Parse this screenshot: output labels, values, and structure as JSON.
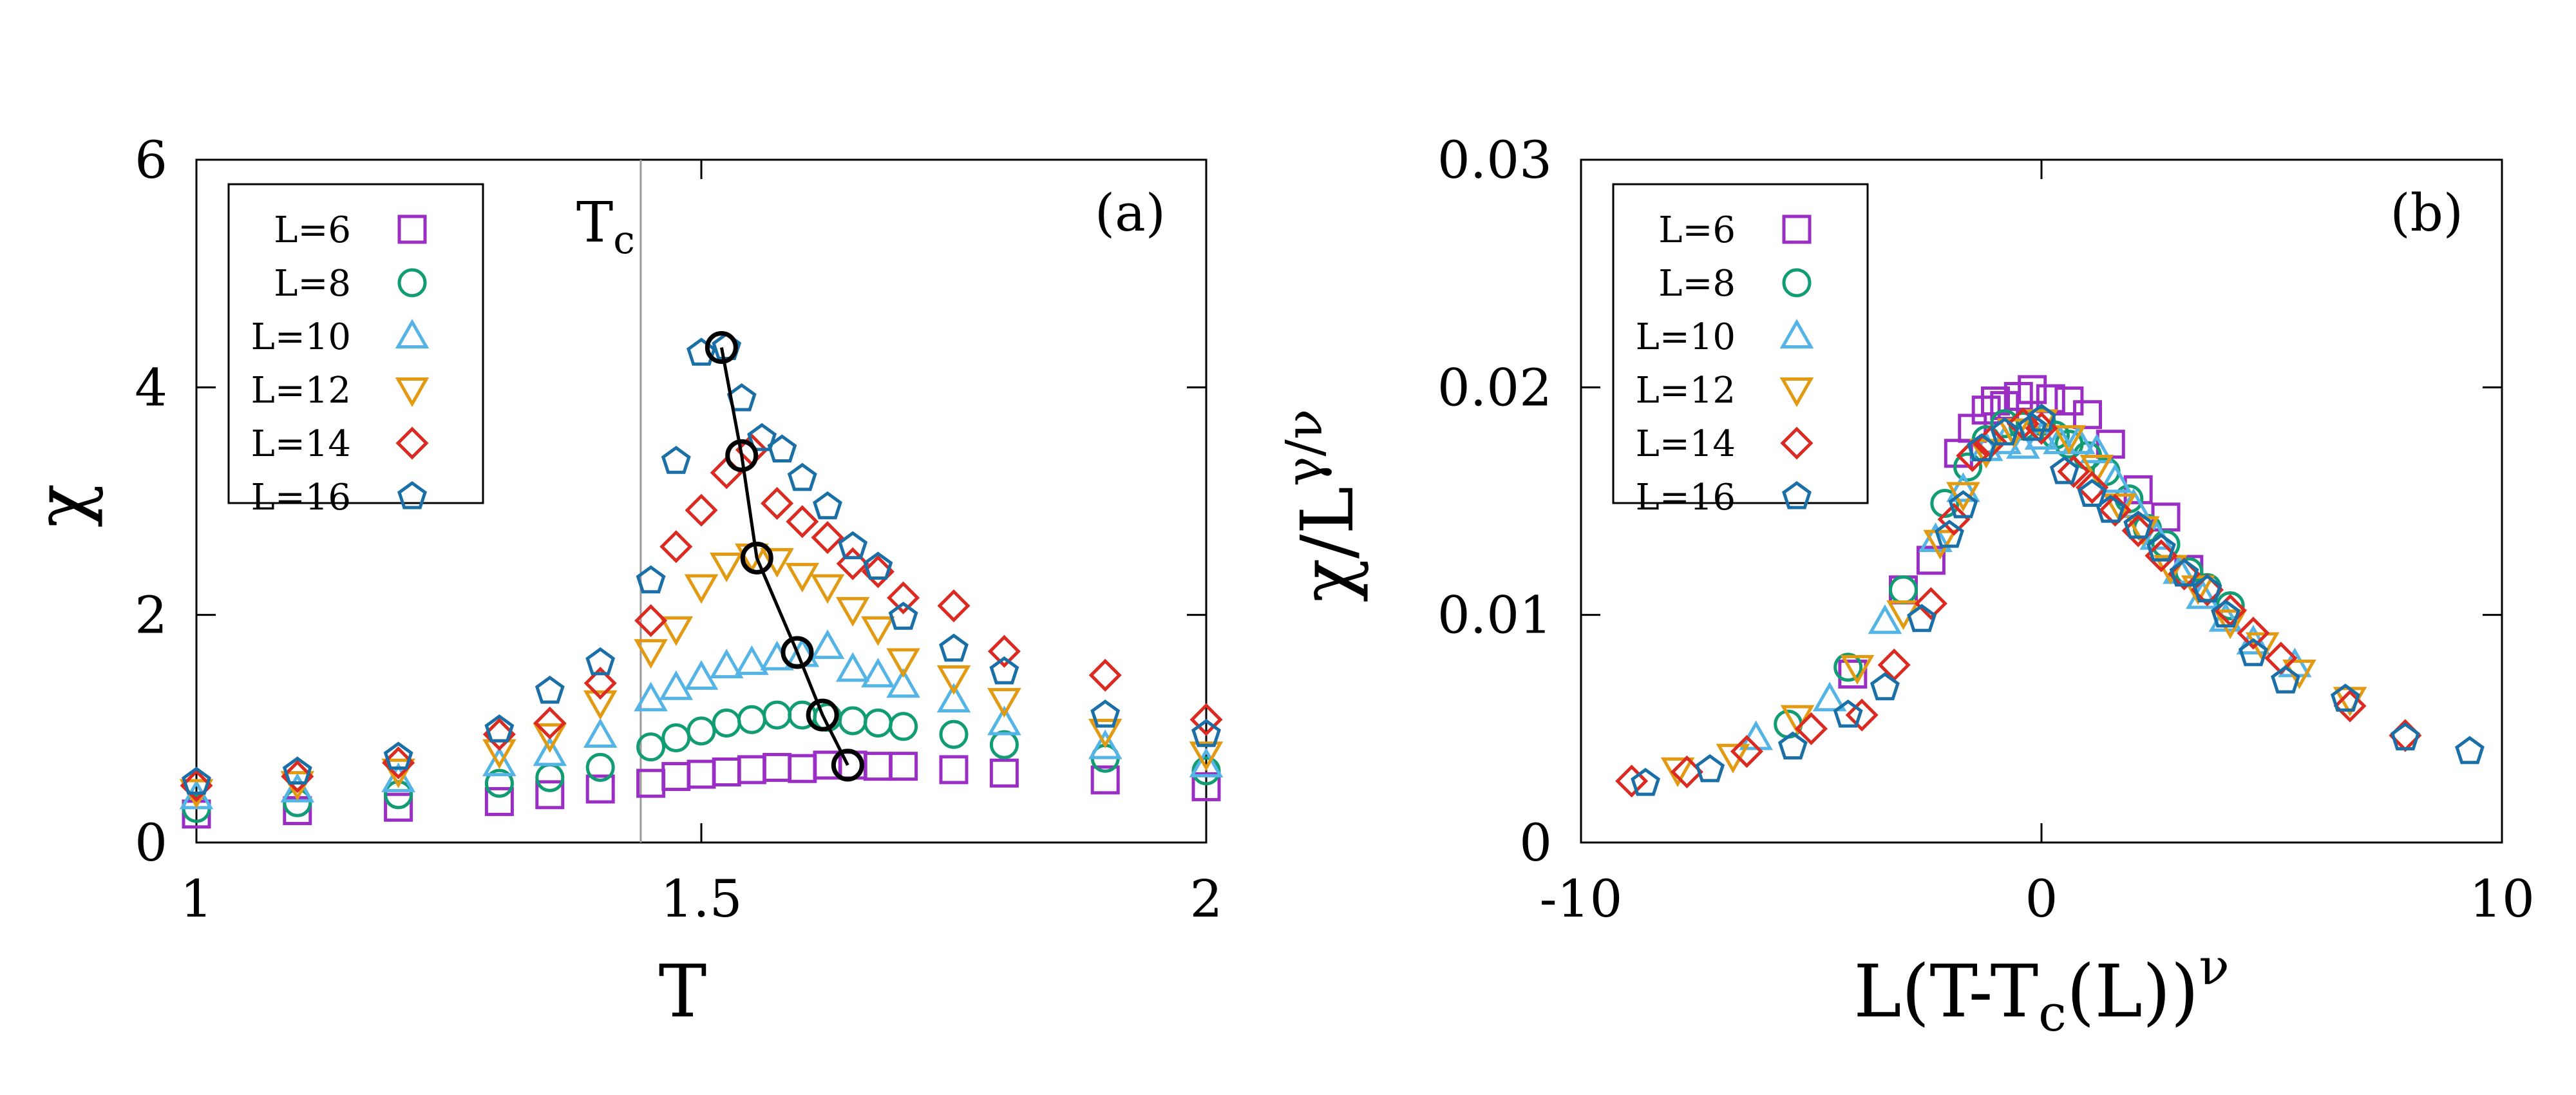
{
  "figure": {
    "description_panels": [
      "(a)",
      "(b)"
    ]
  },
  "colors": {
    "L6": "#9a2ec4",
    "L8": "#119c74",
    "L10": "#55b4e6",
    "L12": "#e39a13",
    "L14": "#da2a21",
    "L16": "#1a6fa6",
    "line": "#000000",
    "tc_line": "#9a9a9a"
  },
  "chart_data": [
    {
      "type": "scatter",
      "panel_label": "(a)",
      "xlabel": "T",
      "ylabel": "χ",
      "xlim": [
        1,
        2
      ],
      "ylim": [
        0,
        6
      ],
      "xticks": [
        1,
        1.5,
        2
      ],
      "xtick_labels": [
        "1",
        "1.5",
        "2"
      ],
      "yticks": [
        0,
        2,
        4,
        6
      ],
      "ytick_labels": [
        "0",
        "2",
        "4",
        "6"
      ],
      "legend_position": "top-left",
      "annotation": {
        "text": "T",
        "subscript": "c",
        "x": 1.44
      },
      "series": [
        {
          "name": "L=6",
          "marker": "square",
          "color_key": "L6",
          "x": [
            1.0,
            1.1,
            1.2,
            1.3,
            1.35,
            1.4,
            1.45,
            1.475,
            1.5,
            1.525,
            1.55,
            1.575,
            1.6,
            1.625,
            1.65,
            1.675,
            1.7,
            1.75,
            1.8,
            1.9,
            2.0
          ],
          "y": [
            0.25,
            0.28,
            0.31,
            0.36,
            0.42,
            0.47,
            0.52,
            0.58,
            0.6,
            0.62,
            0.64,
            0.66,
            0.65,
            0.68,
            0.68,
            0.67,
            0.67,
            0.64,
            0.61,
            0.55,
            0.49
          ]
        },
        {
          "name": "L=8",
          "marker": "circle",
          "color_key": "L8",
          "x": [
            1.0,
            1.1,
            1.2,
            1.3,
            1.35,
            1.4,
            1.45,
            1.475,
            1.5,
            1.525,
            1.55,
            1.575,
            1.6,
            1.625,
            1.65,
            1.675,
            1.7,
            1.75,
            1.8,
            1.9,
            2.0
          ],
          "y": [
            0.3,
            0.35,
            0.42,
            0.52,
            0.57,
            0.66,
            0.84,
            0.92,
            0.98,
            1.05,
            1.08,
            1.12,
            1.12,
            1.1,
            1.07,
            1.05,
            1.02,
            0.95,
            0.86,
            0.74,
            0.63
          ]
        },
        {
          "name": "L=10",
          "marker": "triangle-up",
          "color_key": "L10",
          "x": [
            1.0,
            1.1,
            1.2,
            1.3,
            1.35,
            1.4,
            1.45,
            1.475,
            1.5,
            1.525,
            1.55,
            1.575,
            1.6,
            1.625,
            1.65,
            1.675,
            1.7,
            1.75,
            1.8,
            1.9,
            2.0
          ],
          "y": [
            0.4,
            0.46,
            0.55,
            0.69,
            0.78,
            0.94,
            1.26,
            1.36,
            1.45,
            1.55,
            1.58,
            1.62,
            1.65,
            1.72,
            1.52,
            1.47,
            1.38,
            1.25,
            1.05,
            0.84,
            0.68
          ]
        },
        {
          "name": "L=12",
          "marker": "triangle-down",
          "color_key": "L12",
          "x": [
            1.0,
            1.1,
            1.2,
            1.3,
            1.35,
            1.4,
            1.45,
            1.475,
            1.5,
            1.525,
            1.55,
            1.575,
            1.6,
            1.625,
            1.65,
            1.675,
            1.7,
            1.75,
            1.8,
            1.9,
            2.0
          ],
          "y": [
            0.45,
            0.52,
            0.63,
            0.8,
            0.94,
            1.23,
            1.68,
            1.88,
            2.25,
            2.44,
            2.52,
            2.48,
            2.35,
            2.25,
            2.05,
            1.88,
            1.6,
            1.45,
            1.25,
            0.98,
            0.78
          ]
        },
        {
          "name": "L=14",
          "marker": "diamond",
          "color_key": "L14",
          "x": [
            1.0,
            1.1,
            1.2,
            1.3,
            1.35,
            1.4,
            1.45,
            1.475,
            1.5,
            1.525,
            1.55,
            1.575,
            1.6,
            1.625,
            1.65,
            1.675,
            1.7,
            1.75,
            1.8,
            1.9,
            2.0
          ],
          "y": [
            0.5,
            0.58,
            0.7,
            0.95,
            1.05,
            1.4,
            1.95,
            2.6,
            2.92,
            3.25,
            3.45,
            2.98,
            2.82,
            2.68,
            2.45,
            2.38,
            2.15,
            2.08,
            1.68,
            1.47,
            1.08
          ]
        },
        {
          "name": "L=16",
          "marker": "pentagon",
          "color_key": "L16",
          "x": [
            1.0,
            1.1,
            1.2,
            1.3,
            1.35,
            1.4,
            1.45,
            1.475,
            1.5,
            1.525,
            1.54,
            1.56,
            1.58,
            1.6,
            1.625,
            1.65,
            1.675,
            1.7,
            1.75,
            1.8,
            1.9,
            2.0
          ],
          "y": [
            0.53,
            0.62,
            0.75,
            0.99,
            1.33,
            1.58,
            2.3,
            3.35,
            4.3,
            4.35,
            3.9,
            3.55,
            3.45,
            3.2,
            2.95,
            2.6,
            2.42,
            1.98,
            1.7,
            1.5,
            1.12,
            0.95
          ]
        }
      ],
      "peak_line": {
        "name": "peak positions",
        "marker": "circle-open-black",
        "x": [
          1.52,
          1.54,
          1.555,
          1.595,
          1.62,
          1.645
        ],
        "y": [
          4.35,
          3.4,
          2.5,
          1.67,
          1.12,
          0.68
        ]
      }
    },
    {
      "type": "scatter",
      "panel_label": "(b)",
      "xlabel_parts": [
        "L(T-T",
        "c",
        "(L))",
        "ν"
      ],
      "ylabel_parts": [
        "χ/L",
        "γ/ν"
      ],
      "xlim": [
        -10,
        10
      ],
      "ylim": [
        0,
        0.03
      ],
      "xticks": [
        -10,
        0,
        10
      ],
      "xtick_labels": [
        "-10",
        "0",
        "10"
      ],
      "yticks": [
        0,
        0.01,
        0.02,
        0.03
      ],
      "ytick_labels": [
        "0",
        "0.01",
        "0.02",
        "0.03"
      ],
      "legend_position": "top-left",
      "series": [
        {
          "name": "L=6",
          "marker": "square",
          "color_key": "L6",
          "x": [
            -4.1,
            -3.0,
            -2.4,
            -1.8,
            -1.5,
            -1.2,
            -1.0,
            -0.8,
            -0.5,
            -0.2,
            0.2,
            0.6,
            1.0,
            1.5,
            2.1,
            2.7,
            3.2
          ],
          "y": [
            0.0074,
            0.0111,
            0.0124,
            0.0171,
            0.0182,
            0.019,
            0.0194,
            0.0192,
            0.0196,
            0.0199,
            0.0195,
            0.0194,
            0.0188,
            0.0175,
            0.0155,
            0.0143,
            0.012
          ]
        },
        {
          "name": "L=8",
          "marker": "circle",
          "color_key": "L8",
          "x": [
            -5.5,
            -4.2,
            -3.0,
            -2.1,
            -1.6,
            -1.2,
            -0.8,
            -0.4,
            0.0,
            0.3,
            0.6,
            1.0,
            1.4,
            1.9,
            2.3,
            2.7,
            3.2,
            3.6,
            4.1
          ],
          "y": [
            0.0052,
            0.0077,
            0.0111,
            0.0149,
            0.0165,
            0.0177,
            0.0184,
            0.0183,
            0.0185,
            0.0179,
            0.0175,
            0.017,
            0.0163,
            0.0151,
            0.0138,
            0.0131,
            0.0119,
            0.0112,
            0.0104
          ]
        },
        {
          "name": "L=10",
          "marker": "triangle-up",
          "color_key": "L10",
          "x": [
            -6.2,
            -4.6,
            -3.4,
            -2.3,
            -1.7,
            -1.2,
            -0.8,
            -0.4,
            0.0,
            0.4,
            0.8,
            1.2,
            1.6,
            2.0,
            2.5,
            3.0,
            3.5,
            4.0,
            4.6,
            5.5
          ],
          "y": [
            0.0046,
            0.0063,
            0.0097,
            0.0133,
            0.0155,
            0.0173,
            0.0176,
            0.0174,
            0.0178,
            0.0176,
            0.0176,
            0.0172,
            0.0159,
            0.0148,
            0.0134,
            0.0119,
            0.0108,
            0.0098,
            0.0088,
            0.0078
          ]
        },
        {
          "name": "L=12",
          "marker": "triangle-down",
          "color_key": "L12",
          "x": [
            -7.9,
            -6.7,
            -5.3,
            -4.0,
            -3.0,
            -2.2,
            -1.7,
            -1.2,
            -0.6,
            0.0,
            0.6,
            1.2,
            1.7,
            2.2,
            2.8,
            3.4,
            4.1,
            4.8,
            5.6,
            6.7
          ],
          "y": [
            0.0032,
            0.0038,
            0.0055,
            0.0077,
            0.0101,
            0.0132,
            0.0153,
            0.0172,
            0.0181,
            0.0185,
            0.0178,
            0.0165,
            0.0148,
            0.0138,
            0.0121,
            0.0112,
            0.0097,
            0.0087,
            0.0075,
            0.0063
          ]
        },
        {
          "name": "L=14",
          "marker": "diamond",
          "color_key": "L14",
          "x": [
            -8.9,
            -7.7,
            -6.4,
            -5.0,
            -3.9,
            -3.2,
            -2.4,
            -1.9,
            -1.5,
            -1.1,
            -0.4,
            0.0,
            0.7,
            1.1,
            1.6,
            2.1,
            2.6,
            3.1,
            3.6,
            4.1,
            4.6,
            5.2,
            6.7,
            7.9
          ],
          "y": [
            0.0027,
            0.0031,
            0.004,
            0.005,
            0.0056,
            0.0078,
            0.0105,
            0.0142,
            0.017,
            0.0176,
            0.0184,
            0.0182,
            0.0163,
            0.0156,
            0.0146,
            0.0137,
            0.0126,
            0.0118,
            0.0111,
            0.0102,
            0.0092,
            0.0081,
            0.006,
            0.0047
          ]
        },
        {
          "name": "L=16",
          "marker": "pentagon",
          "color_key": "L16",
          "x": [
            -8.6,
            -7.2,
            -5.4,
            -4.2,
            -3.4,
            -2.6,
            -2.0,
            -1.7,
            -1.3,
            -0.8,
            -0.2,
            0.0,
            0.5,
            1.1,
            1.5,
            2.1,
            2.6,
            3.1,
            3.6,
            4.0,
            4.6,
            5.3,
            6.6,
            7.9,
            9.3
          ],
          "y": [
            0.0026,
            0.0032,
            0.0042,
            0.0056,
            0.0068,
            0.0098,
            0.0135,
            0.0148,
            0.0173,
            0.018,
            0.0182,
            0.0186,
            0.0163,
            0.0153,
            0.0146,
            0.0139,
            0.0129,
            0.0118,
            0.0111,
            0.01,
            0.0083,
            0.0071,
            0.0063,
            0.0046,
            0.004
          ]
        }
      ]
    }
  ]
}
